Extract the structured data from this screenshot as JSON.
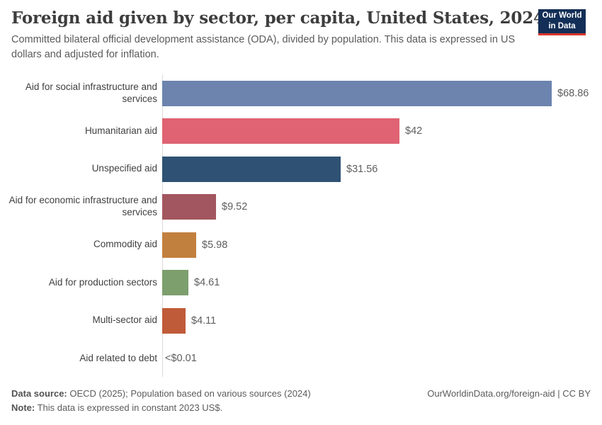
{
  "header": {
    "title": "Foreign aid given by sector, per capita, United States, 2024",
    "subtitle": "Committed bilateral official development assistance (ODA), divided by population. This data is expressed in US dollars and adjusted for inflation.",
    "logo": {
      "line1": "Our World",
      "line2": "in Data",
      "bg_color": "#132f57",
      "accent_color": "#dc352c"
    }
  },
  "chart_data": {
    "type": "bar",
    "orientation": "horizontal",
    "title": "Foreign aid given by sector, per capita, United States, 2024",
    "categories": [
      "Aid for social infrastructure and services",
      "Humanitarian aid",
      "Unspecified aid",
      "Aid for economic infrastructure and services",
      "Commodity aid",
      "Aid for production sectors",
      "Multi-sector aid",
      "Aid related to debt"
    ],
    "values": [
      68.86,
      42,
      31.56,
      9.52,
      5.98,
      4.61,
      4.11,
      0
    ],
    "value_labels": [
      "$68.86",
      "$42",
      "$31.56",
      "$9.52",
      "$5.98",
      "$4.61",
      "$4.11",
      "<$0.01"
    ],
    "bar_colors": [
      "#6c84ae",
      "#df6373",
      "#2f5274",
      "#a2565f",
      "#c2803f",
      "#7d9e6d",
      "#c05b39",
      "none"
    ],
    "xlim": [
      0,
      68.86
    ],
    "grid": false,
    "legend": false,
    "axis_color": "#dadada"
  },
  "footer": {
    "data_source_label": "Data source:",
    "data_source_text": " OECD (2025); Population based on various sources (2024)",
    "note_label": "Note:",
    "note_text": " This data is expressed in constant 2023 US$.",
    "right_text": "OurWorldinData.org/foreign-aid | CC BY"
  }
}
